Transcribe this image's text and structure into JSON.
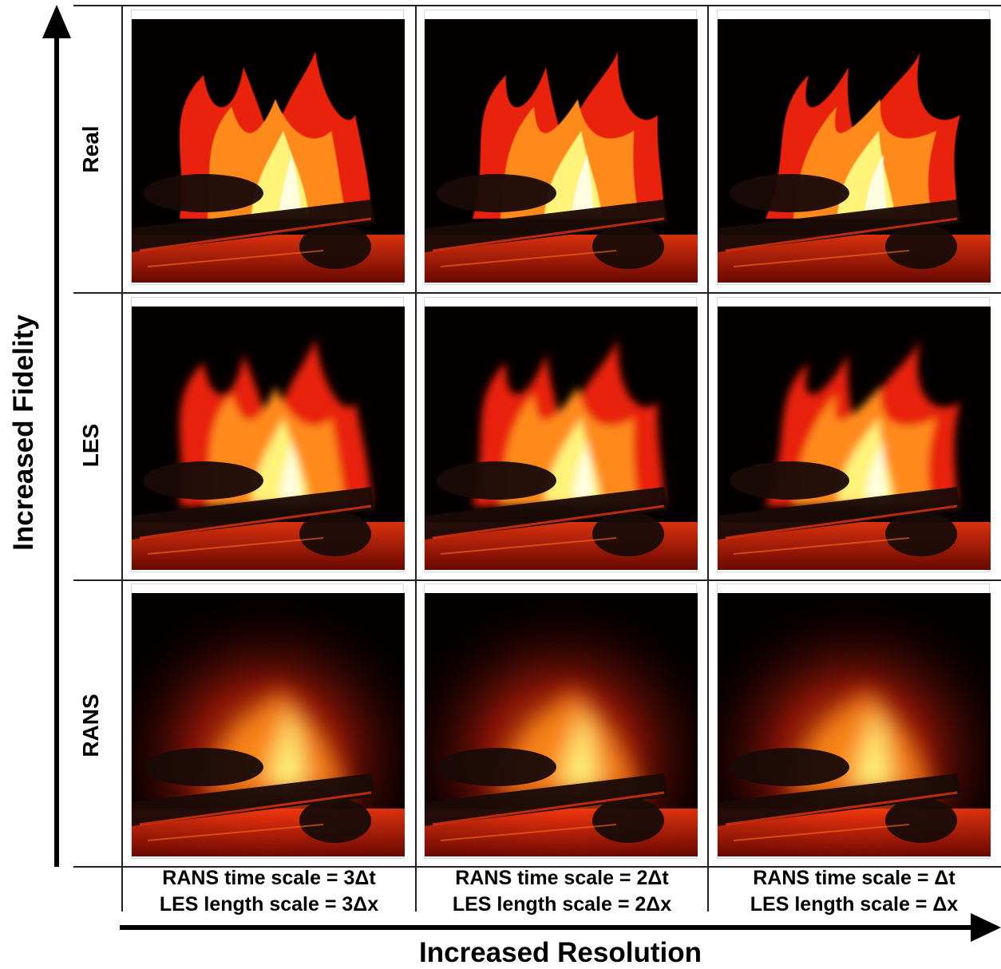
{
  "axes": {
    "y_title": "Increased Fidelity",
    "x_title": "Increased Resolution"
  },
  "rows": [
    {
      "label": "Real",
      "render": "sharp"
    },
    {
      "label": "LES",
      "render": "blurred"
    },
    {
      "label": "RANS",
      "render": "glow"
    }
  ],
  "columns": [
    {
      "line1": "RANS time scale = 3Δt",
      "line2": "LES length scale = 3Δx"
    },
    {
      "line1": "RANS time scale = 2Δt",
      "line2": "LES length scale = 2Δx"
    },
    {
      "line1": "RANS time scale = Δt",
      "line2": "LES length scale = Δx"
    }
  ],
  "colors": {
    "background": "#ffffff",
    "axis": "#000000",
    "grid": "#222222",
    "flame_core": "#fff37a",
    "flame_mid": "#ff8a1a",
    "flame_outer": "#e8230c",
    "ember": "#ff3a10",
    "log": "#1a0b08"
  }
}
